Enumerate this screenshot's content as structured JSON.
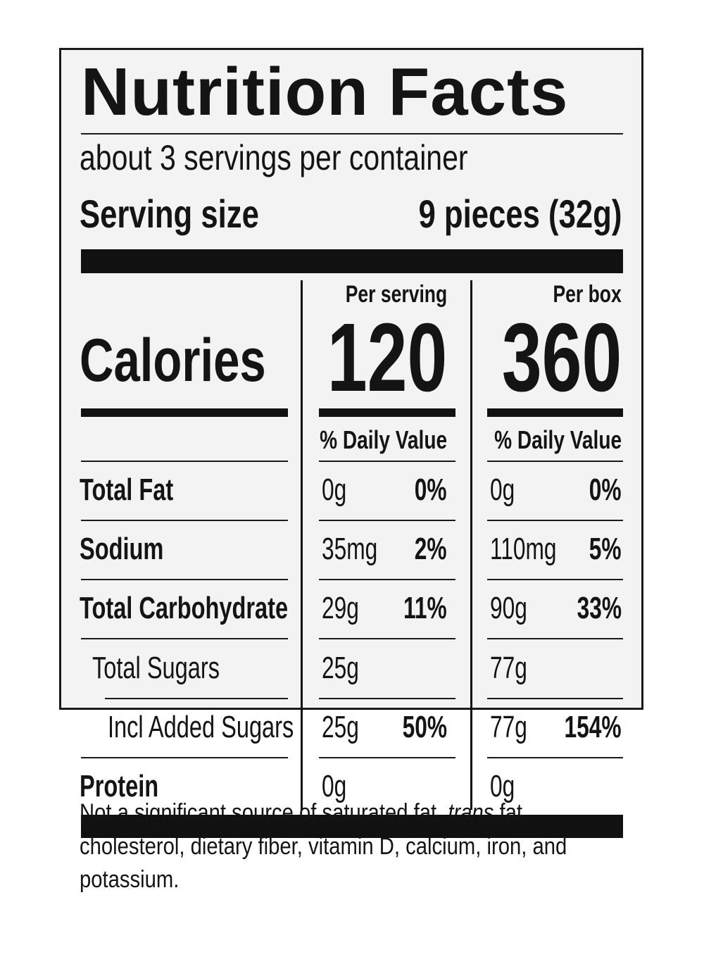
{
  "title": "Nutrition Facts",
  "servings_per_container": "about 3 servings per container",
  "serving_size": {
    "label": "Serving size",
    "value": "9 pieces (32g)"
  },
  "calories": {
    "label": "Calories",
    "per_serving_label": "Per serving",
    "per_serving_value": "120",
    "per_box_label": "Per box",
    "per_box_value": "360"
  },
  "daily_value_header": "% Daily Value",
  "nutrients": [
    {
      "name": "Total Fat",
      "bold": true,
      "serving_amount": "0g",
      "serving_dv": "0%",
      "box_amount": "0g",
      "box_dv": "0%"
    },
    {
      "name": "Sodium",
      "bold": true,
      "serving_amount": "35mg",
      "serving_dv": "2%",
      "box_amount": "110mg",
      "box_dv": "5%"
    },
    {
      "name": "Total Carbohydrate",
      "bold": true,
      "serving_amount": "29g",
      "serving_dv": "11%",
      "box_amount": "90g",
      "box_dv": "33%"
    },
    {
      "name": "Total Sugars",
      "bold": false,
      "serving_amount": "25g",
      "serving_dv": "",
      "box_amount": "77g",
      "box_dv": ""
    },
    {
      "name": "Incl Added Sugars",
      "bold": false,
      "serving_amount": "25g",
      "serving_dv": "50%",
      "box_amount": "77g",
      "box_dv": "154%"
    },
    {
      "name": "Protein",
      "bold": true,
      "serving_amount": "0g",
      "serving_dv": "",
      "box_amount": "0g",
      "box_dv": ""
    }
  ],
  "footnote": {
    "before_italic": "Not a significant source of saturated fat, ",
    "italic": "trans",
    "after_italic": " fat, cholesterol, dietary fiber, vitamin D, calcium, iron, and potassium."
  }
}
